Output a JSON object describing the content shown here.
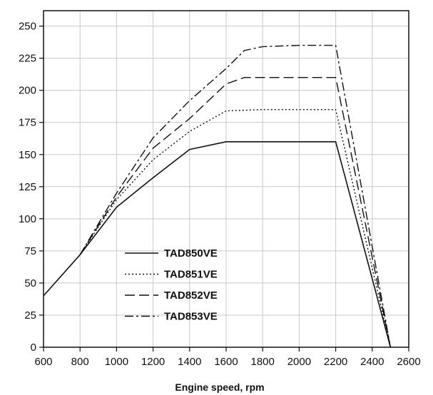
{
  "chart_data": {
    "type": "line",
    "title": "",
    "xlabel": "Engine speed, rpm",
    "ylabel": "",
    "xlim": [
      600,
      2600
    ],
    "ylim": [
      0,
      262
    ],
    "xticks": [
      600,
      800,
      1000,
      1200,
      1400,
      1600,
      1800,
      2000,
      2200,
      2400,
      2600
    ],
    "yticks": [
      0,
      25,
      50,
      75,
      100,
      125,
      150,
      175,
      200,
      225,
      250
    ],
    "grid": true,
    "legend": "lower-left",
    "series": [
      {
        "name": "TAD850VE",
        "dash": "solid",
        "points": [
          [
            600,
            40
          ],
          [
            800,
            72
          ],
          [
            1000,
            109
          ],
          [
            1200,
            132
          ],
          [
            1400,
            154
          ],
          [
            1600,
            160
          ],
          [
            1800,
            160
          ],
          [
            2000,
            160
          ],
          [
            2200,
            160
          ],
          [
            2500,
            0
          ]
        ]
      },
      {
        "name": "TAD851VE",
        "dash": "dotted",
        "points": [
          [
            800,
            72
          ],
          [
            1000,
            115
          ],
          [
            1200,
            146
          ],
          [
            1400,
            168
          ],
          [
            1600,
            184
          ],
          [
            1800,
            185
          ],
          [
            2000,
            185
          ],
          [
            2200,
            185
          ],
          [
            2500,
            0
          ]
        ]
      },
      {
        "name": "TAD852VE",
        "dash": "dashed",
        "points": [
          [
            800,
            72
          ],
          [
            1000,
            117
          ],
          [
            1200,
            155
          ],
          [
            1400,
            178
          ],
          [
            1600,
            205
          ],
          [
            1700,
            210
          ],
          [
            1800,
            210
          ],
          [
            2000,
            210
          ],
          [
            2200,
            210
          ],
          [
            2500,
            0
          ]
        ]
      },
      {
        "name": "TAD853VE",
        "dash": "dashdot",
        "points": [
          [
            800,
            72
          ],
          [
            1000,
            120
          ],
          [
            1200,
            163
          ],
          [
            1400,
            192
          ],
          [
            1600,
            217
          ],
          [
            1700,
            231
          ],
          [
            1800,
            234
          ],
          [
            2000,
            235
          ],
          [
            2200,
            235
          ],
          [
            2500,
            0
          ]
        ]
      }
    ]
  }
}
